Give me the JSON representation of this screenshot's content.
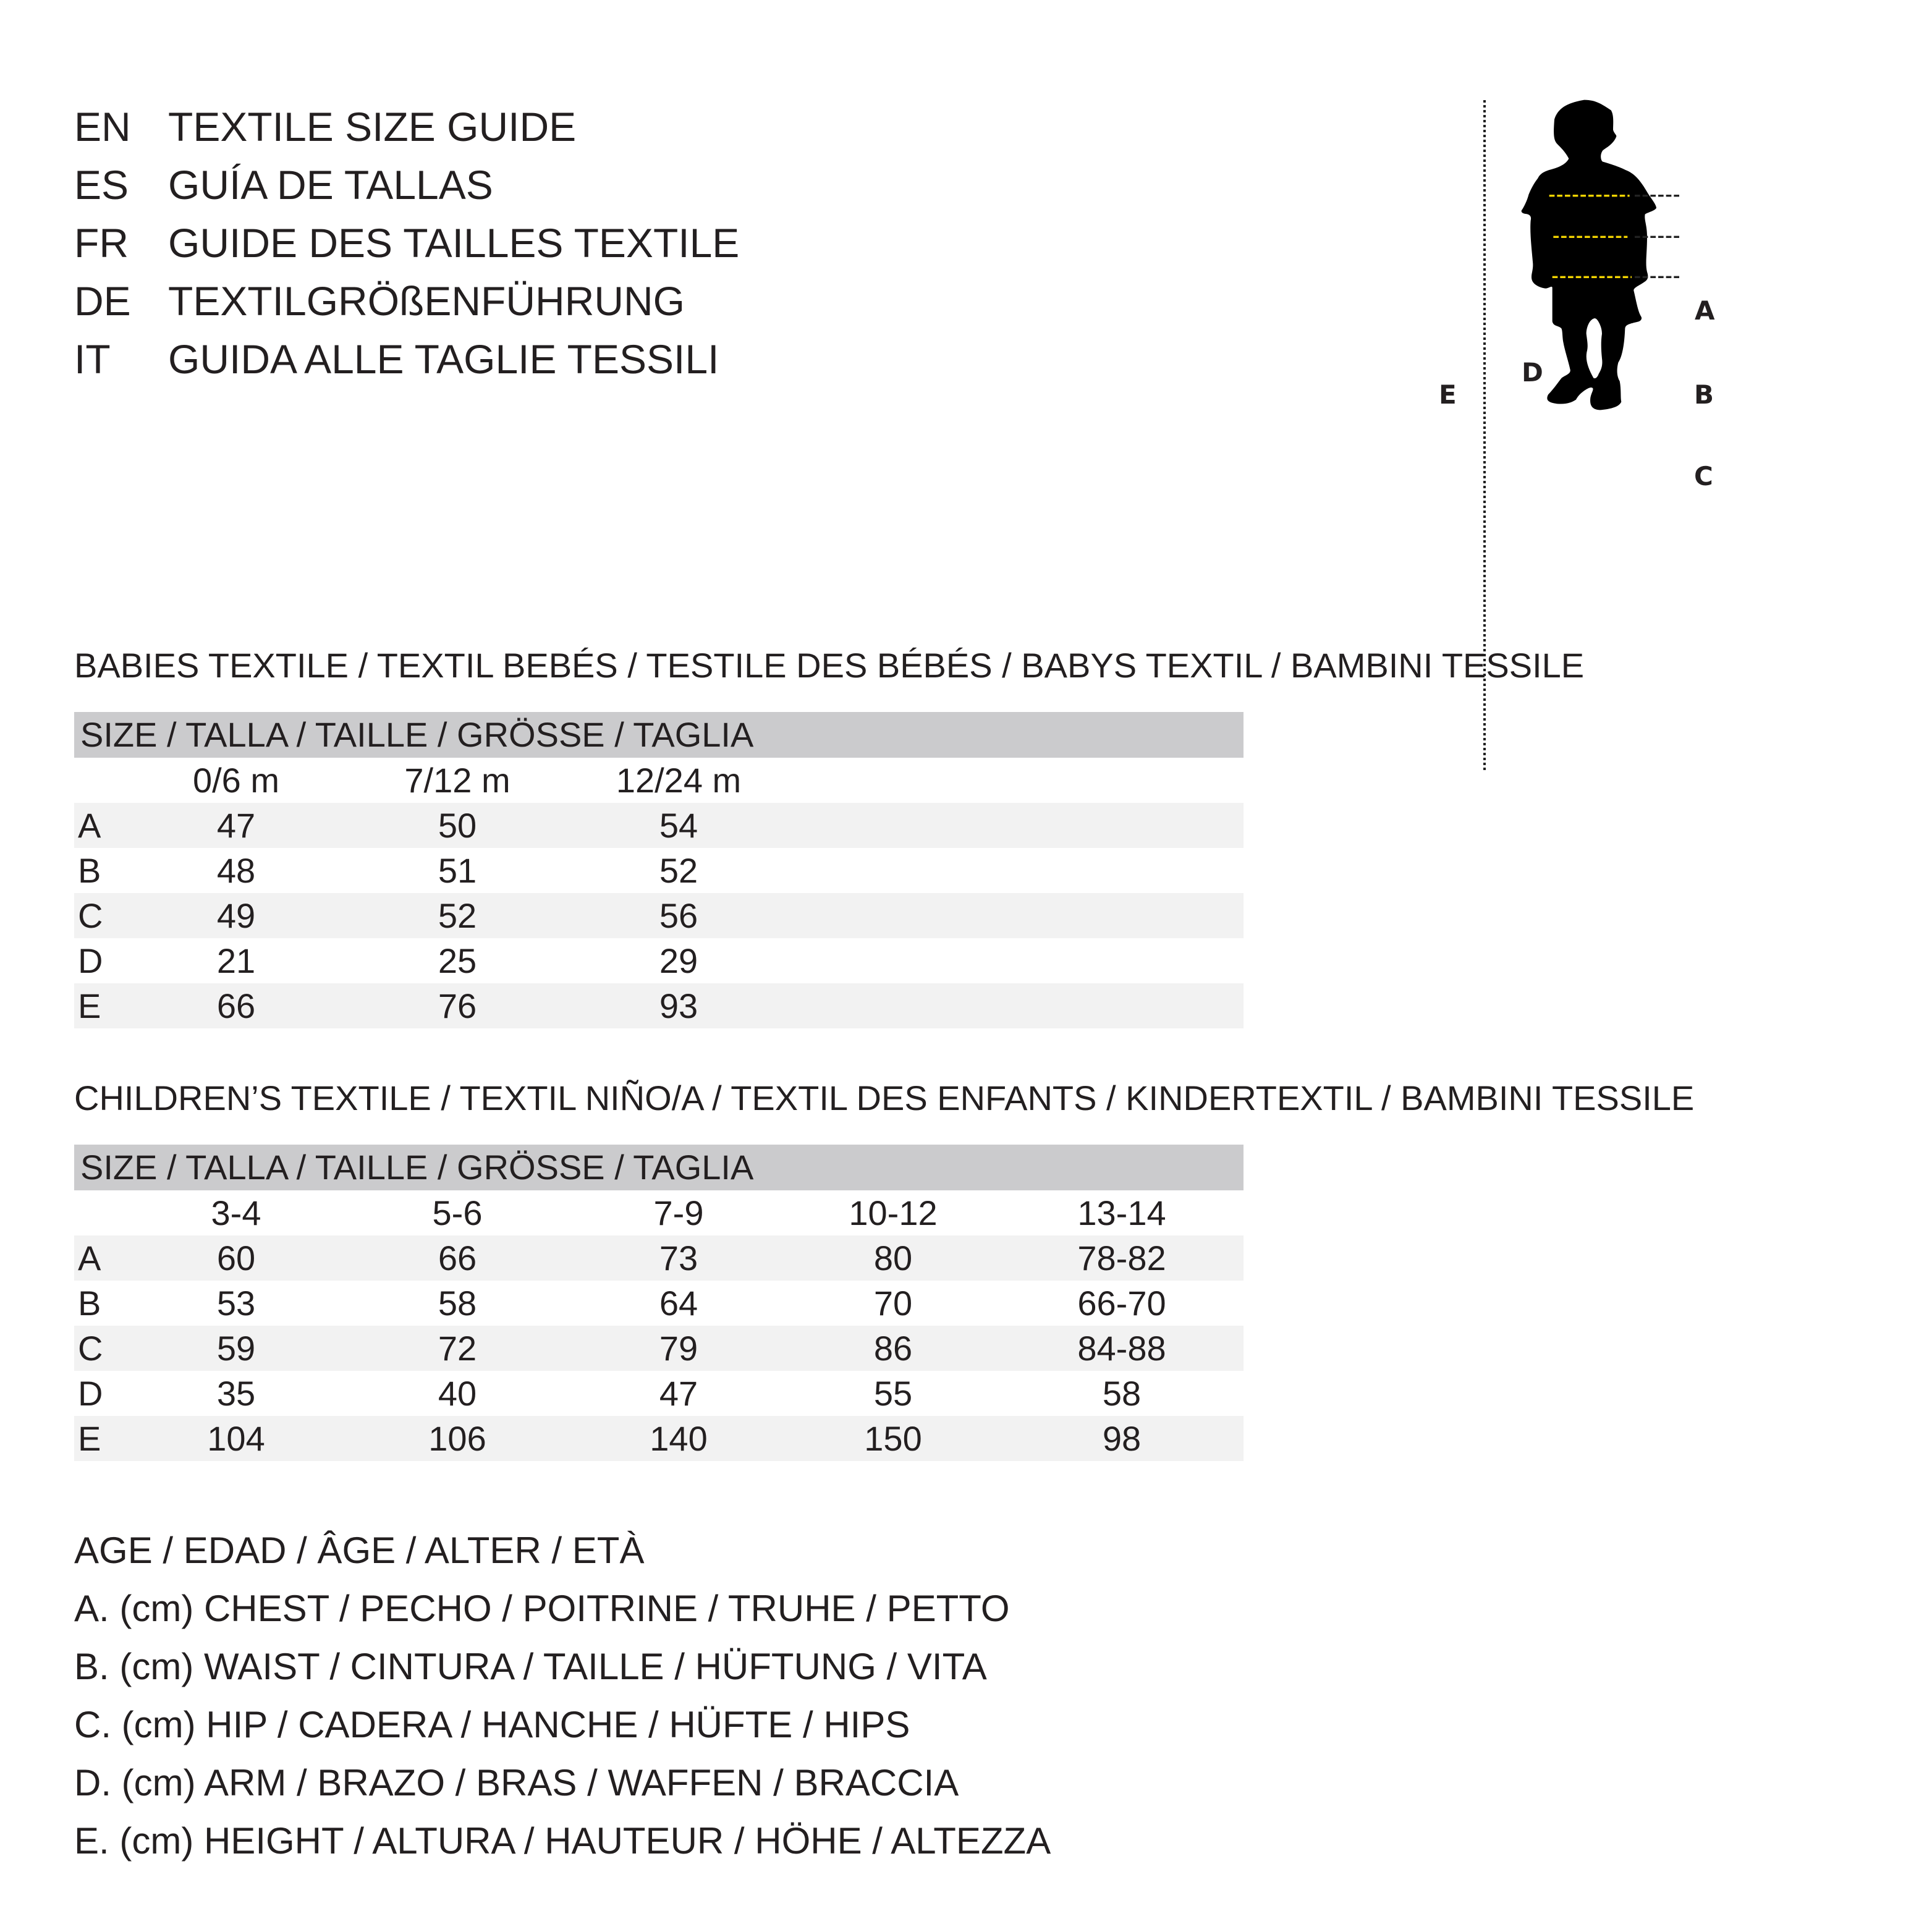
{
  "titles": [
    {
      "code": "EN",
      "text": "TEXTILE SIZE GUIDE"
    },
    {
      "code": "ES",
      "text": "GUÍA DE TALLAS"
    },
    {
      "code": "FR",
      "text": "GUIDE DES TAILLES TEXTILE"
    },
    {
      "code": "DE",
      "text": "TEXTILGRÖßENFÜHRUNG"
    },
    {
      "code": "IT",
      "text": "GUIDA ALLE TAGLIE TESSILI"
    }
  ],
  "babies": {
    "heading": "BABIES TEXTILE / TEXTIL BEBÉS / TESTILE DES BÉBÉS / BABYS TEXTIL / BAMBINI TESSILE",
    "size_header": "SIZE / TALLA / TAILLE / GRÖSSE / TAGLIA",
    "columns": [
      "0/6 m",
      "7/12 m",
      "12/24 m"
    ],
    "rows": [
      {
        "label": "A",
        "values": [
          "47",
          "50",
          "54"
        ]
      },
      {
        "label": "B",
        "values": [
          "48",
          "51",
          "52"
        ]
      },
      {
        "label": "C",
        "values": [
          "49",
          "52",
          "56"
        ]
      },
      {
        "label": "D",
        "values": [
          "21",
          "25",
          "29"
        ]
      },
      {
        "label": "E",
        "values": [
          "66",
          "76",
          "93"
        ]
      }
    ]
  },
  "children": {
    "heading": "CHILDREN’S TEXTILE / TEXTIL NIÑO/A / TEXTIL DES ENFANTS / KINDERTEXTIL / BAMBINI TESSILE",
    "size_header": "SIZE / TALLA / TAILLE / GRÖSSE / TAGLIA",
    "columns": [
      "3-4",
      "5-6",
      "7-9",
      "10-12",
      "13-14"
    ],
    "rows": [
      {
        "label": "A",
        "values": [
          "60",
          "66",
          "73",
          "80",
          "78-82"
        ]
      },
      {
        "label": "B",
        "values": [
          "53",
          "58",
          "64",
          "70",
          "66-70"
        ]
      },
      {
        "label": "C",
        "values": [
          "59",
          "72",
          "79",
          "86",
          "84-88"
        ]
      },
      {
        "label": "D",
        "values": [
          "35",
          "40",
          "47",
          "55",
          "58"
        ]
      },
      {
        "label": "E",
        "values": [
          "104",
          "106",
          "140",
          "150",
          "98"
        ]
      }
    ]
  },
  "legend": [
    "AGE / EDAD / ÂGE / ALTER / ETÀ",
    "A. (cm) CHEST / PECHO / POITRINE / TRUHE / PETTO",
    "B. (cm) WAIST / CINTURA / TAILLE / HÜFTUNG / VITA",
    "C. (cm) HIP / CADERA / HANCHE / HÜFTE / HIPS",
    "D. (cm) ARM / BRAZO / BRAS / WAFFEN / BRACCIA",
    "E. (cm) HEIGHT / ALTURA / HAUTEUR / HÖHE / ALTEZZA"
  ],
  "figure": {
    "labels": {
      "a": "A",
      "b": "B",
      "c": "C",
      "d": "D",
      "e": "E"
    },
    "colors": {
      "measure_line": "#f2d300",
      "header_bg": "#cbcbcd",
      "stripe_bg": "#f2f2f2",
      "silhouette": "#000000"
    }
  }
}
